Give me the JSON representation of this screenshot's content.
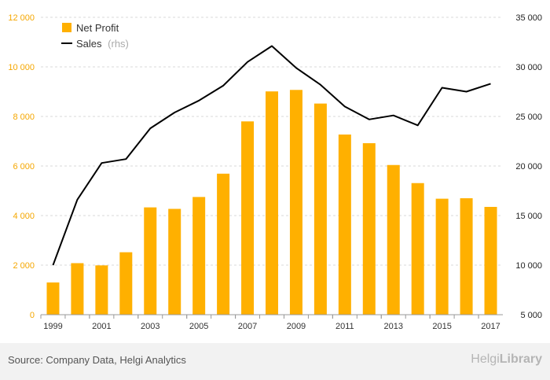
{
  "chart_data": {
    "type": "bar",
    "categories": [
      "1999",
      "2000",
      "2001",
      "2002",
      "2003",
      "2004",
      "2005",
      "2006",
      "2007",
      "2008",
      "2009",
      "2010",
      "2011",
      "2012",
      "2013",
      "2014",
      "2015",
      "2016",
      "2017"
    ],
    "series": [
      {
        "name": "Net Profit",
        "type": "bar",
        "axis": "left",
        "values": [
          1300,
          2080,
          1990,
          2520,
          4330,
          4270,
          4750,
          5690,
          7800,
          9010,
          9070,
          8520,
          7270,
          6920,
          6040,
          5310,
          4680,
          4700,
          4350
        ]
      },
      {
        "name": "Sales",
        "name_suffix": "(rhs)",
        "type": "line",
        "axis": "right",
        "values": [
          10000,
          16600,
          20300,
          20700,
          23800,
          25400,
          26600,
          28100,
          30500,
          32100,
          29900,
          28200,
          26000,
          24700,
          25100,
          24100,
          27900,
          27500,
          28300
        ]
      }
    ],
    "x_tick_labels": [
      "1999",
      "2001",
      "2003",
      "2005",
      "2007",
      "2009",
      "2011",
      "2013",
      "2015",
      "2017"
    ],
    "y_left": {
      "ylim": [
        0,
        12000
      ],
      "ticks": [
        "0",
        "2 000",
        "4 000",
        "6 000",
        "8 000",
        "10 000",
        "12 000"
      ],
      "tick_values": [
        0,
        2000,
        4000,
        6000,
        8000,
        10000,
        12000
      ]
    },
    "y_right": {
      "ylim": [
        5000,
        35000
      ],
      "ticks": [
        "5 000",
        "10 000",
        "15 000",
        "20 000",
        "25 000",
        "30 000",
        "35 000"
      ],
      "tick_values": [
        5000,
        10000,
        15000,
        20000,
        25000,
        30000,
        35000
      ]
    },
    "grid": true,
    "legend_position": "top-left",
    "colors": {
      "bar": "#FFB000",
      "line": "#000000",
      "left_axis_text": "#F5A700",
      "right_axis_text": "#222222",
      "grid": "#d9d9d9"
    }
  },
  "footer": {
    "source": "Source: Company Data, Helgi Analytics",
    "brand_prefix": "Helgi",
    "brand_suffix": "Library"
  }
}
